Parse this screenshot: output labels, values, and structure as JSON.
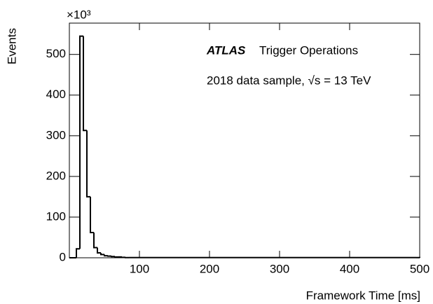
{
  "chart_data": {
    "type": "histogram",
    "annotations": [
      "ATLAS",
      "Trigger Operations",
      "2018 data sample, √s = 13 TeV"
    ],
    "x_label": "Framework Time [ms]",
    "y_label": "Events",
    "y_multiplier": "×10³",
    "color": "#000000",
    "bins": [
      0,
      5,
      10,
      15,
      20,
      25,
      30,
      35,
      40,
      45,
      50,
      55,
      60,
      65,
      70,
      75,
      80,
      85,
      90,
      95,
      100,
      105,
      110,
      115,
      120,
      125,
      130,
      135,
      140,
      145,
      150,
      155,
      160,
      165,
      170,
      175,
      180,
      185,
      190,
      195,
      200,
      205,
      210,
      215,
      220,
      225,
      230,
      235,
      240,
      245,
      250,
      255,
      260,
      265,
      270,
      275,
      280,
      285,
      290,
      295,
      300,
      305,
      310,
      315,
      320,
      325,
      330,
      335,
      340,
      345,
      350,
      355,
      360,
      365,
      370,
      375,
      380,
      385,
      390,
      395,
      400,
      405,
      410,
      415,
      420,
      425,
      430,
      435,
      440,
      445,
      450,
      455,
      460,
      465,
      470,
      475,
      480,
      485,
      490,
      495,
      500
    ],
    "counts": [
      0,
      0,
      22,
      545,
      313,
      150,
      62,
      25,
      12,
      8,
      5,
      4,
      3,
      2,
      2,
      1,
      0.5,
      0.5,
      0.5,
      0.5,
      0.5,
      0.5,
      0.5,
      0.5,
      0.5,
      0.5,
      0.5,
      0.5,
      0.5,
      0.5,
      0.5,
      0.5,
      0.5,
      0.5,
      0.5,
      0.5,
      0.5,
      0.5,
      0.5,
      0.5,
      0.5,
      0.5,
      0.5,
      0.5,
      0.5,
      0.5,
      0.5,
      0.5,
      0.5,
      0.5,
      0.5,
      0.5,
      0.5,
      0.5,
      0.5,
      0.5,
      0.5,
      0.5,
      0.5,
      0.5,
      0.5,
      0.5,
      0.5,
      0.5,
      0.5,
      0.5,
      0.5,
      0.5,
      0.5,
      0.5,
      0.5,
      0.5,
      0.5,
      0.5,
      0.5,
      0.5,
      0.5,
      0.5,
      0.5,
      0.5,
      0.5,
      0.5,
      0.5,
      0.5,
      0.5,
      0.5,
      0.5,
      0.5,
      0.5,
      0.5,
      0.5,
      0.5,
      0.5,
      0.5,
      0.5,
      0.5,
      0.5,
      0.5,
      0.5,
      0.5
    ],
    "xlim": [
      0,
      500
    ],
    "xticks": [
      100,
      200,
      300,
      400,
      500
    ],
    "ylim": [
      0,
      577
    ],
    "yticks": [
      0,
      100,
      200,
      300,
      400,
      500
    ]
  }
}
